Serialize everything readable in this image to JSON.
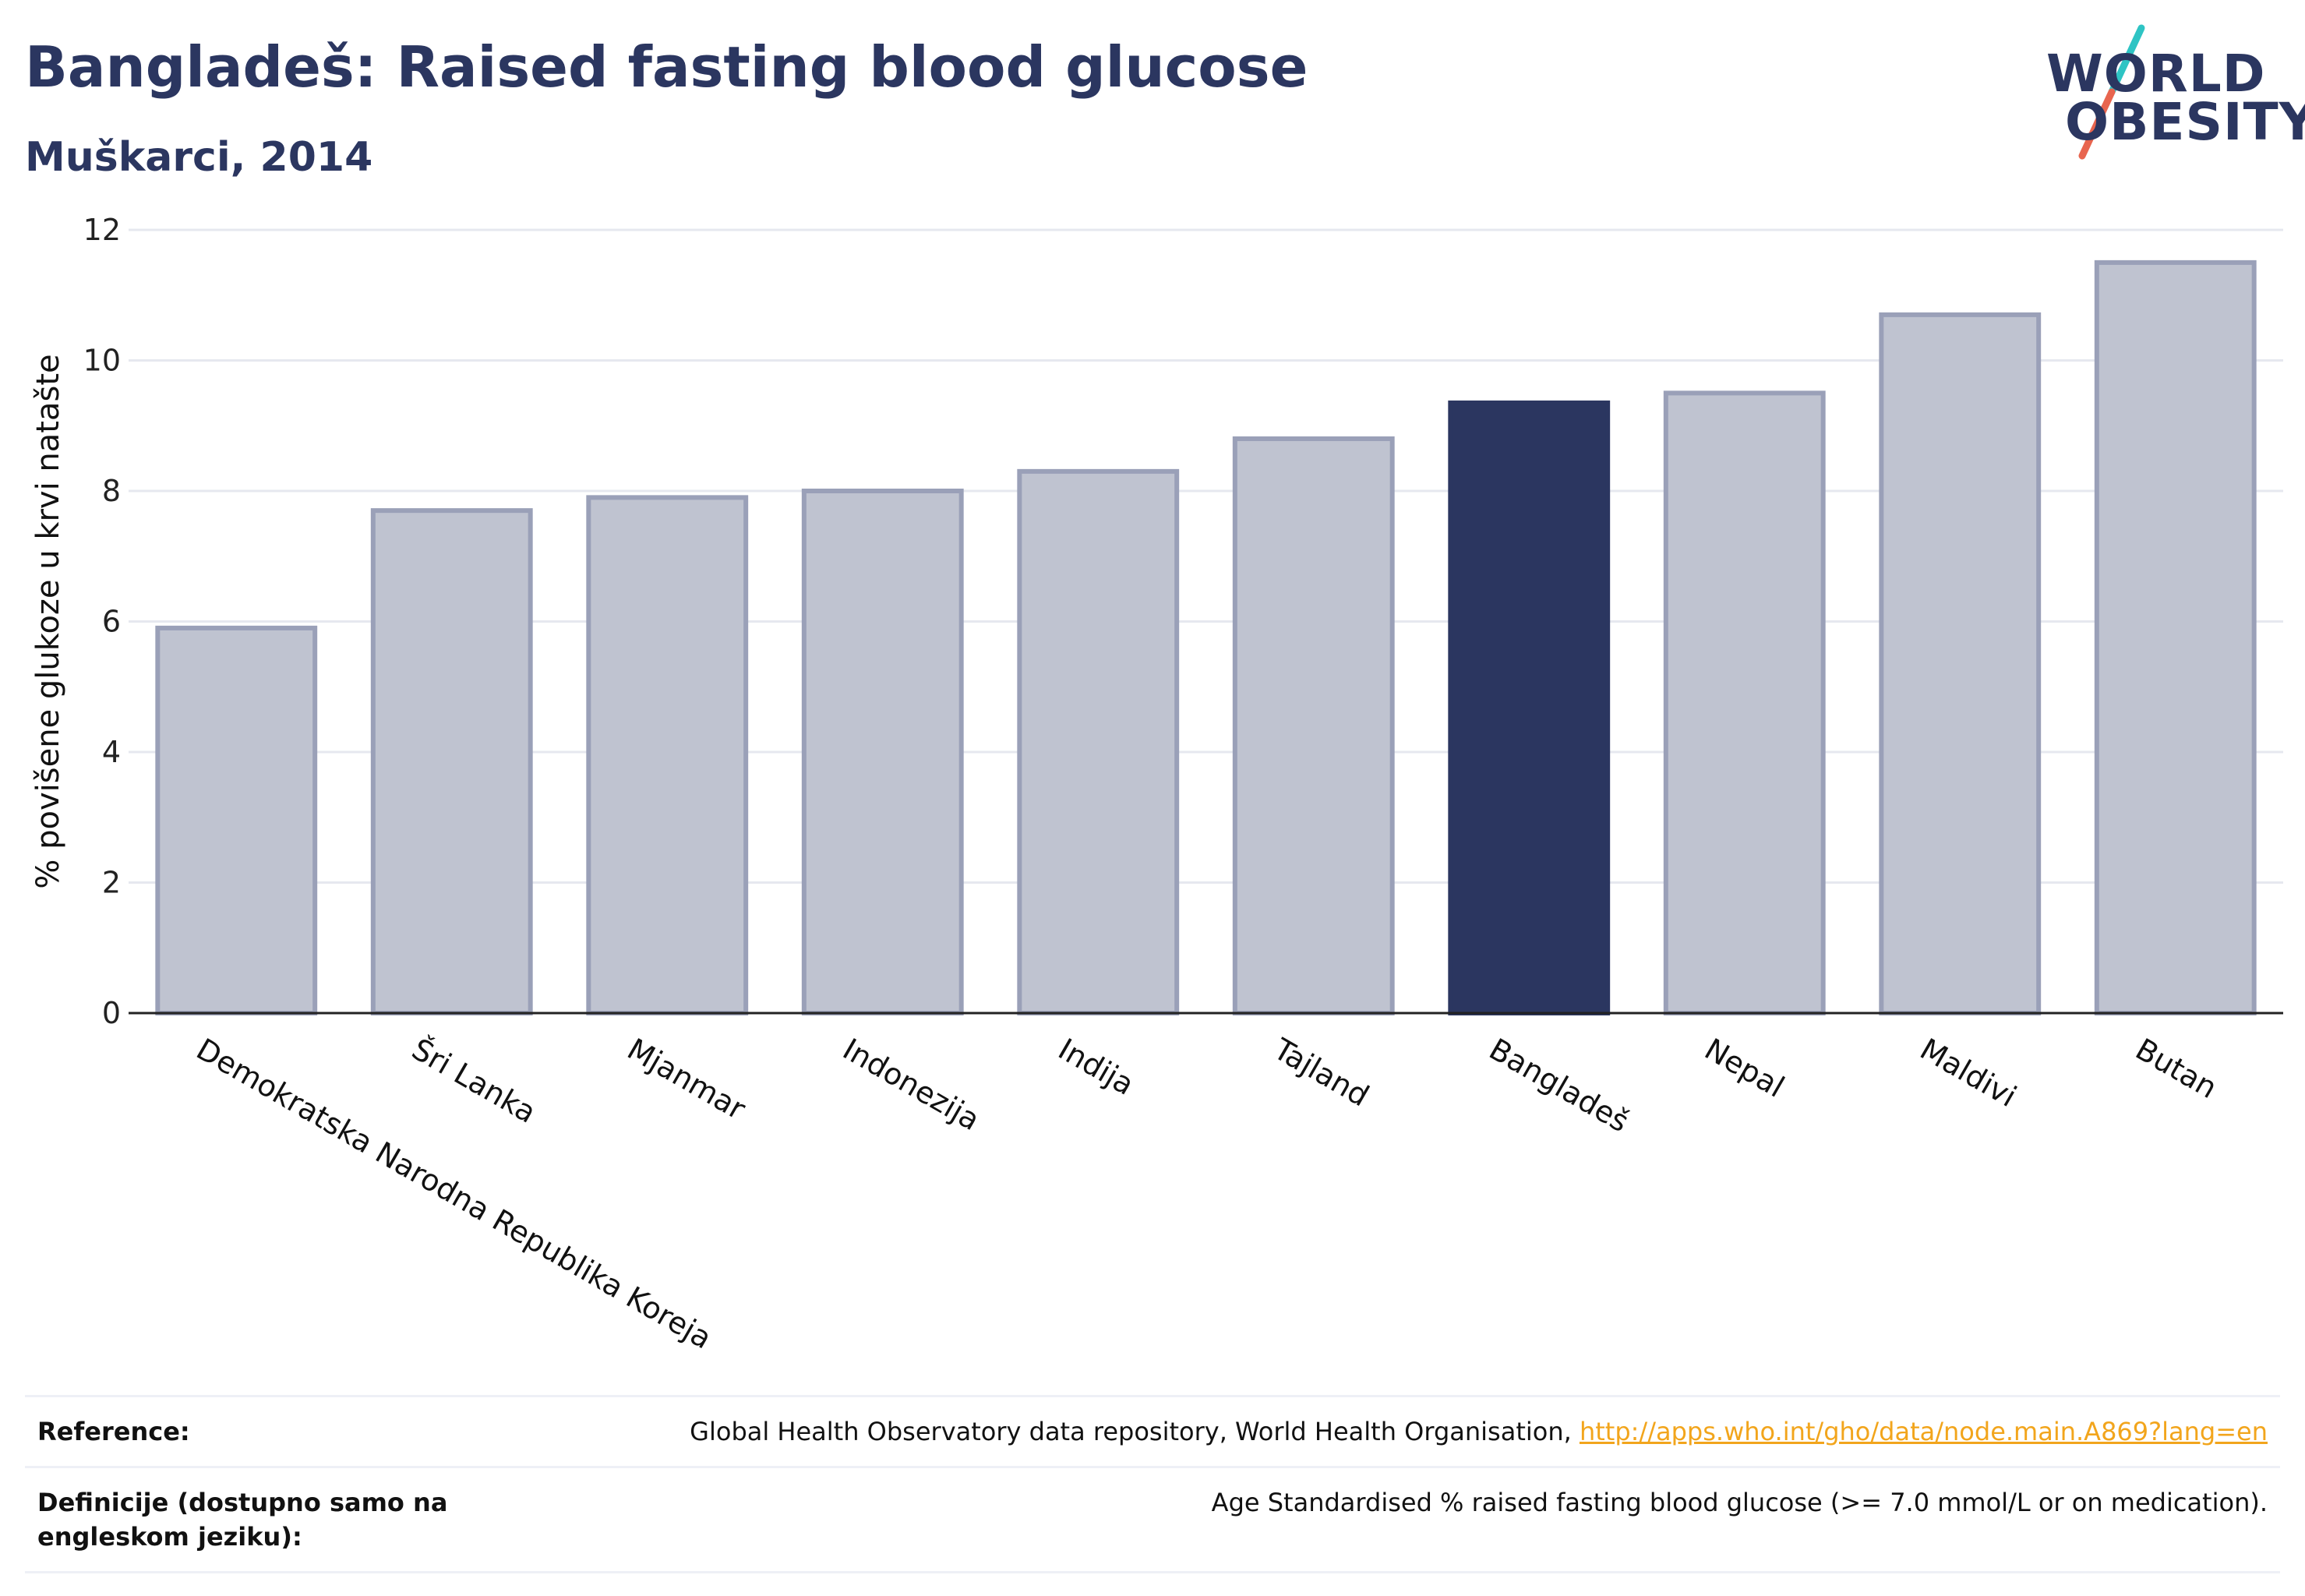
{
  "header": {
    "title": "Bangladeš: Raised fasting blood glucose",
    "subtitle": "Muškarci, 2014"
  },
  "logo": {
    "line1": "WORLD",
    "line2": "OBESITY",
    "slash_colors": [
      "#2ec4c4",
      "#e8654f"
    ],
    "brand_color": "#2b3660"
  },
  "chart_data": {
    "type": "bar",
    "categories": [
      "Demokratska Narodna Republika Koreja",
      "Šri Lanka",
      "Mjanmar",
      "Indonezija",
      "Indija",
      "Tajland",
      "Bangladeš",
      "Nepal",
      "Maldivi",
      "Butan"
    ],
    "values": [
      5.9,
      7.7,
      7.9,
      8.0,
      8.3,
      8.8,
      9.35,
      9.5,
      10.7,
      11.5
    ],
    "highlight": "Bangladeš",
    "ylabel": "% povišene glukoze u krvi natašte",
    "xlabel": "",
    "ylim": [
      0,
      12
    ],
    "yticks": [
      0,
      2,
      4,
      6,
      8,
      10,
      12
    ],
    "grid": true,
    "colors": {
      "default_fill": "#bfc3d0",
      "default_stroke": "#9aa0b8",
      "highlight_fill": "#2b3660"
    }
  },
  "footer": {
    "reference_label": "Reference:",
    "reference_text": "Global Health Observatory data repository, World Health Organisation, ",
    "reference_link": "http://apps.who.int/gho/data/node.main.A869?lang=en",
    "definition_label": "Definicije (dostupno samo na engleskom jeziku):",
    "definition_text": "Age Standardised % raised fasting blood glucose (>= 7.0 mmol/L or on medication)."
  }
}
